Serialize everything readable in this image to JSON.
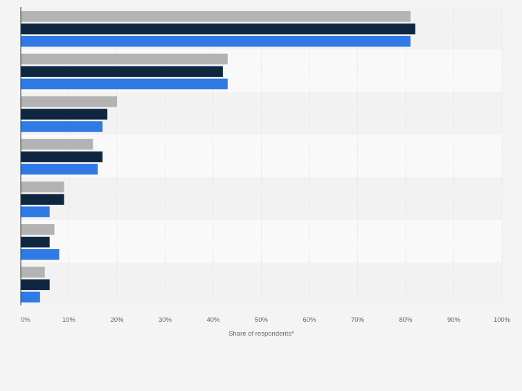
{
  "chart_data": {
    "type": "bar",
    "orientation": "horizontal",
    "categories": [
      "",
      "",
      "",
      "",
      "",
      "",
      ""
    ],
    "series": [
      {
        "color": "#b3b3b3",
        "values": [
          81,
          43,
          20,
          15,
          9,
          7,
          5
        ]
      },
      {
        "color": "#0f2640",
        "values": [
          82,
          42,
          18,
          17,
          9,
          6,
          6
        ]
      },
      {
        "color": "#2f7ae5",
        "values": [
          81,
          43,
          17,
          16,
          6,
          8,
          4
        ]
      }
    ],
    "xlabel": "Share of respondents*",
    "xlim": [
      0,
      100
    ],
    "x_ticks": [
      "0%",
      "10%",
      "20%",
      "30%",
      "40%",
      "50%",
      "60%",
      "70%",
      "80%",
      "90%",
      "100%"
    ],
    "grid": true,
    "legend": "none"
  }
}
